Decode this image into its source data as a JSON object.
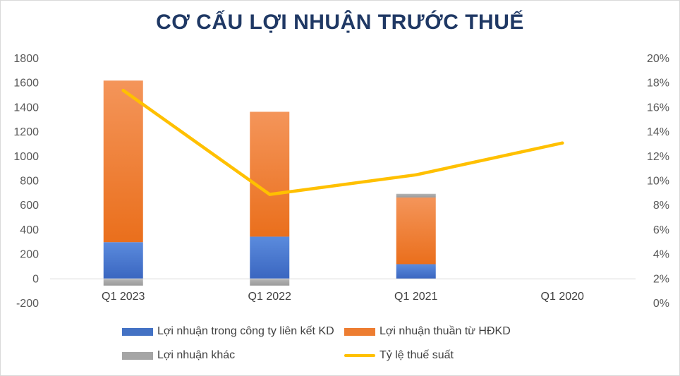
{
  "chart_data": {
    "type": "bar",
    "title": "CƠ CẤU LỢI NHUẬN TRƯỚC THUẾ",
    "categories": [
      "Q1 2023",
      "Q1 2022",
      "Q1 2021",
      "Q1 2020"
    ],
    "series": [
      {
        "name": "Lợi nhuận trong công ty liên kết KD",
        "kind": "stacked-bar",
        "axis": "left",
        "color": "#4472c4",
        "values": [
          300,
          345,
          120,
          0
        ]
      },
      {
        "name": "Lợi nhuận thuần từ HĐKD",
        "kind": "stacked-bar",
        "axis": "left",
        "color": "#ed7d31",
        "values": [
          1320,
          1020,
          545,
          0
        ]
      },
      {
        "name": "Lợi nhuận khác",
        "kind": "stacked-bar",
        "axis": "left",
        "color": "#a5a5a5",
        "values": [
          -55,
          -55,
          30,
          0
        ]
      },
      {
        "name": "Tỷ lệ thuế suất",
        "kind": "line",
        "axis": "right",
        "color": "#ffc000",
        "values": [
          17.4,
          8.9,
          10.5,
          13.1
        ]
      }
    ],
    "y_left": {
      "min": -200,
      "max": 1800,
      "ticks": [
        "-200",
        "0",
        "200",
        "400",
        "600",
        "800",
        "1000",
        "1200",
        "1400",
        "1600",
        "1800"
      ]
    },
    "y_right": {
      "min": 0,
      "max": 20,
      "ticks": [
        "0%",
        "2%",
        "4%",
        "6%",
        "8%",
        "10%",
        "12%",
        "14%",
        "16%",
        "18%",
        "20%"
      ]
    },
    "legend": {
      "placement": "bottom"
    },
    "grid": false
  }
}
